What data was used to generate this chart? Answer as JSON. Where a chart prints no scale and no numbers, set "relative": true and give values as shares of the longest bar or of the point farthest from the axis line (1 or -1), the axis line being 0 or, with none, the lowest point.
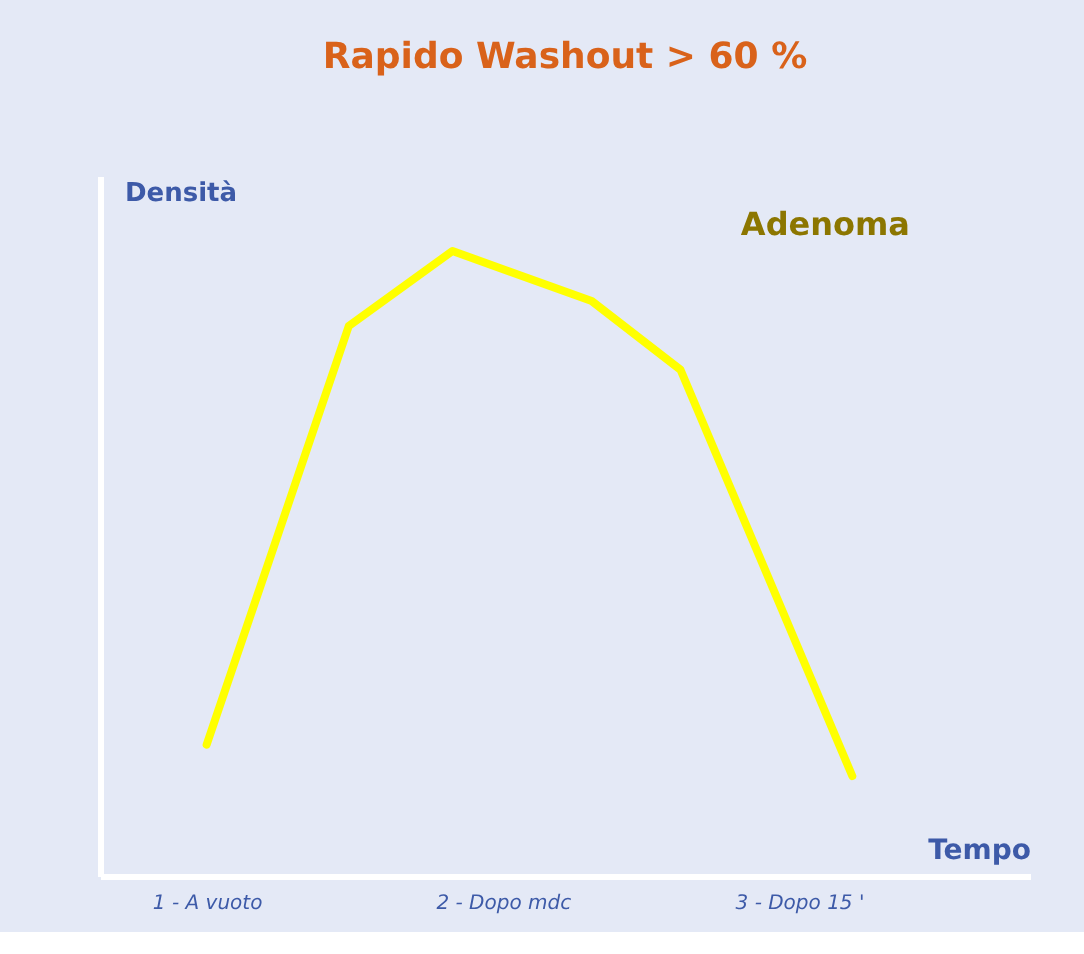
{
  "chart_data": {
    "type": "line",
    "title": "Rapido Washout > 60 %",
    "xlabel": "Tempo",
    "ylabel": "Densità",
    "relative": true,
    "x": [
      1.0,
      1.48,
      1.83,
      2.3,
      2.6,
      3.18
    ],
    "xlim": [
      0.64,
      3.78
    ],
    "xticks": [
      {
        "value": 1,
        "label": "1 - A vuoto"
      },
      {
        "value": 2,
        "label": "2 - Dopo mdc"
      },
      {
        "value": 3,
        "label": "3 - Dopo 15 '"
      }
    ],
    "series": [
      {
        "name": "Adenoma",
        "color": "#ffff00",
        "values": [
          0.21,
          0.88,
          1.0,
          0.92,
          0.81,
          0.16
        ]
      }
    ],
    "grid": false,
    "legend": false,
    "marker": "none",
    "line_style": "solid"
  }
}
